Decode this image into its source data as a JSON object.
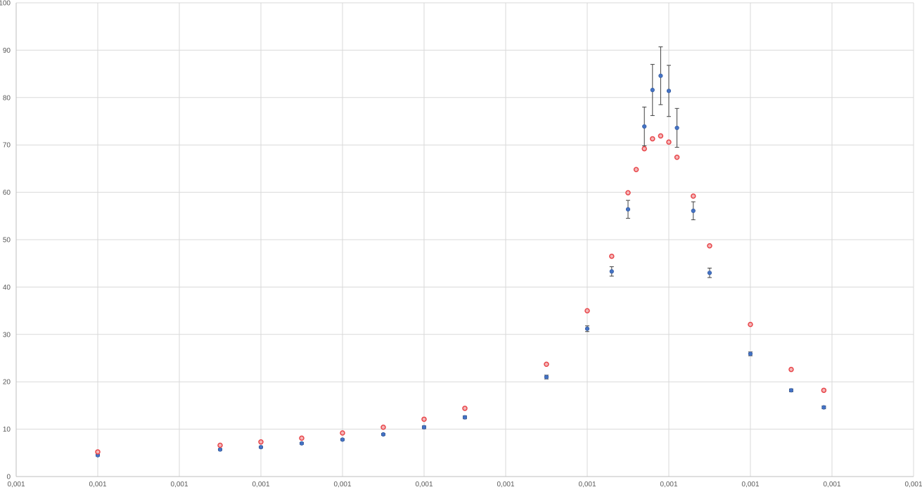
{
  "chart_data": {
    "type": "scatter",
    "title": "",
    "xlabel": "",
    "ylabel": "",
    "x_axis": {
      "range": [
        0,
        11
      ],
      "ticks": [
        0,
        1,
        2,
        3,
        4,
        5,
        6,
        7,
        8,
        9,
        10,
        11
      ],
      "tick_labels": [
        "0,001",
        "0,001",
        "0,001",
        "0,001",
        "0,001",
        "0,001",
        "0,001",
        "0,001",
        "0,001",
        "0,001",
        "0,001",
        "0,001"
      ]
    },
    "y_axis": {
      "range": [
        0,
        100
      ],
      "ticks": [
        0,
        10,
        20,
        30,
        40,
        50,
        60,
        70,
        80,
        90,
        100
      ],
      "tick_labels": [
        "0",
        "10",
        "20",
        "30",
        "40",
        "50",
        "60",
        "70",
        "80",
        "90",
        "100"
      ]
    },
    "grid": true,
    "legend": "none",
    "series": [
      {
        "color": "#4472c4",
        "marker": "filled-circle",
        "error_bars": true,
        "points": [
          {
            "x": 1.0,
            "y": 4.5,
            "err": 0.2
          },
          {
            "x": 2.5,
            "y": 5.7,
            "err": 0.2
          },
          {
            "x": 3.0,
            "y": 6.2,
            "err": 0.2
          },
          {
            "x": 3.5,
            "y": 7.0,
            "err": 0.2
          },
          {
            "x": 4.0,
            "y": 7.8,
            "err": 0.2
          },
          {
            "x": 4.5,
            "y": 8.9,
            "err": 0.2
          },
          {
            "x": 5.0,
            "y": 10.4,
            "err": 0.3
          },
          {
            "x": 5.5,
            "y": 12.5,
            "err": 0.3
          },
          {
            "x": 6.5,
            "y": 21.0,
            "err": 0.4
          },
          {
            "x": 7.0,
            "y": 31.2,
            "err": 0.6
          },
          {
            "x": 7.3,
            "y": 43.3,
            "err": 1.0
          },
          {
            "x": 7.5,
            "y": 56.4,
            "err": 1.9
          },
          {
            "x": 7.7,
            "y": 73.9,
            "err": 4.1
          },
          {
            "x": 7.8,
            "y": 81.6,
            "err": 5.4
          },
          {
            "x": 7.9,
            "y": 84.6,
            "err": 6.1
          },
          {
            "x": 8.0,
            "y": 81.4,
            "err": 5.4
          },
          {
            "x": 8.1,
            "y": 73.6,
            "err": 4.1
          },
          {
            "x": 8.3,
            "y": 56.1,
            "err": 1.9
          },
          {
            "x": 8.5,
            "y": 43.0,
            "err": 1.0
          },
          {
            "x": 9.0,
            "y": 25.9,
            "err": 0.4
          },
          {
            "x": 9.5,
            "y": 18.2,
            "err": 0.3
          },
          {
            "x": 9.9,
            "y": 14.6,
            "err": 0.3
          }
        ]
      },
      {
        "color": "#e8464a",
        "marker": "open-circle",
        "error_bars": false,
        "points": [
          {
            "x": 1.0,
            "y": 5.2
          },
          {
            "x": 2.5,
            "y": 6.6
          },
          {
            "x": 3.0,
            "y": 7.3
          },
          {
            "x": 3.5,
            "y": 8.1
          },
          {
            "x": 4.0,
            "y": 9.2
          },
          {
            "x": 4.5,
            "y": 10.4
          },
          {
            "x": 5.0,
            "y": 12.1
          },
          {
            "x": 5.5,
            "y": 14.4
          },
          {
            "x": 6.5,
            "y": 23.7
          },
          {
            "x": 7.0,
            "y": 35.0
          },
          {
            "x": 7.3,
            "y": 46.5
          },
          {
            "x": 7.5,
            "y": 59.9
          },
          {
            "x": 7.6,
            "y": 64.8
          },
          {
            "x": 7.7,
            "y": 69.2
          },
          {
            "x": 7.8,
            "y": 71.3
          },
          {
            "x": 7.9,
            "y": 71.9
          },
          {
            "x": 8.0,
            "y": 70.6
          },
          {
            "x": 8.1,
            "y": 67.4
          },
          {
            "x": 8.3,
            "y": 59.2
          },
          {
            "x": 8.5,
            "y": 48.7
          },
          {
            "x": 9.0,
            "y": 32.1
          },
          {
            "x": 9.5,
            "y": 22.6
          },
          {
            "x": 9.9,
            "y": 18.2
          }
        ]
      }
    ]
  }
}
